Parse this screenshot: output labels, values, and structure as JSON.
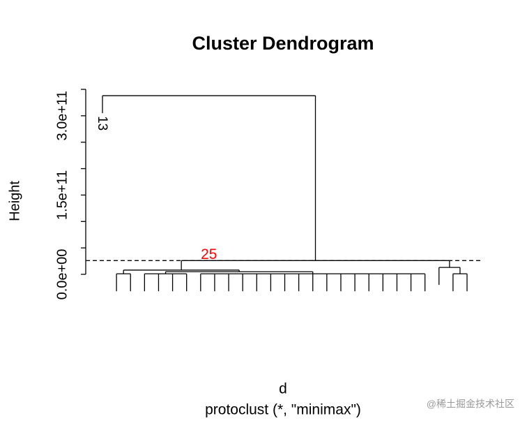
{
  "chart_data": {
    "type": "dendrogram",
    "title": "Cluster Dendrogram",
    "ylabel": "Height",
    "xlabel": "d",
    "subtitle": "protoclust (*, \"minimax\")",
    "ylim": [
      0,
      350000000000
    ],
    "yticks": [
      {
        "value": 0,
        "label": "0.0e+00"
      },
      50000000000,
      100000000000,
      {
        "value": 150000000000,
        "label": "1.5e+11"
      },
      200000000000,
      250000000000,
      {
        "value": 300000000000,
        "label": "3.0e+11"
      },
      350000000000
    ],
    "cut_height": 26000000000,
    "cut_label": "25",
    "cut_label_color": "#ff0000",
    "tree": {
      "height": 338000000000,
      "children": [
        "13",
        {
          "height": 26000000000,
          "children": [
            {
              "height": 8000000000,
              "children": [
                {
                  "height": 1000000000,
                  "children": [
                    null,
                    null
                  ]
                },
                {
                  "height": 5000000000,
                  "children": [
                    {
                      "height": 1000000000,
                      "children": [
                        null,
                        null,
                        null,
                        null
                      ]
                    },
                    {
                      "height": 1000000000,
                      "children": [
                        null,
                        null,
                        null,
                        null,
                        null,
                        null,
                        null,
                        null,
                        null,
                        null,
                        null,
                        null,
                        null,
                        null,
                        null,
                        null,
                        null
                      ]
                    }
                  ]
                }
              ]
            },
            {
              "height": 13000000000,
              "children": [
                null,
                {
                  "height": 1000000000,
                  "children": [
                    null,
                    null
                  ]
                }
              ]
            }
          ]
        }
      ]
    },
    "watermark": "@稀土掘金技术社区"
  }
}
